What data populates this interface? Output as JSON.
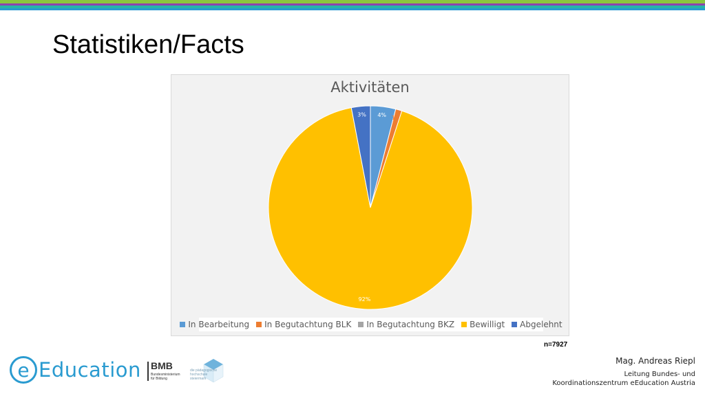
{
  "slide": {
    "title": "Statistiken/Facts",
    "sample_size": "n=7927"
  },
  "footer": {
    "logo_e": "e",
    "logo_text": "Education",
    "ministry_abbr": "BMB",
    "ministry_line1": "Bundesministerium",
    "ministry_line2": "für Bildung",
    "school_line1": "die pädagogische",
    "school_line2": "hochschule",
    "school_line3": "steiermark",
    "author_name": "Mag. Andreas Riepl",
    "author_role1": "Leitung Bundes- und",
    "author_role2": "Koordinationszentrum eEducation Austria"
  },
  "colors": {
    "stripe_green": "#8cc63f",
    "stripe_purple": "#8e44ad",
    "stripe_teal": "#26b5a9",
    "stripe_blue": "#2a9bd0"
  },
  "chart_data": {
    "type": "pie",
    "title": "Aktivitäten",
    "categories": [
      "In Bearbeitung",
      "In Begutachtung BLK",
      "In Begutachtung BKZ",
      "Bewilligt",
      "Abgelehnt"
    ],
    "values": [
      4,
      1,
      0,
      92,
      3
    ],
    "labels": [
      "4%",
      "1%",
      "0%",
      "92%",
      "3%"
    ],
    "colors": [
      "#5b9bd5",
      "#ed7d31",
      "#a5a5a5",
      "#ffc000",
      "#4472c4"
    ],
    "legend_position": "bottom"
  }
}
